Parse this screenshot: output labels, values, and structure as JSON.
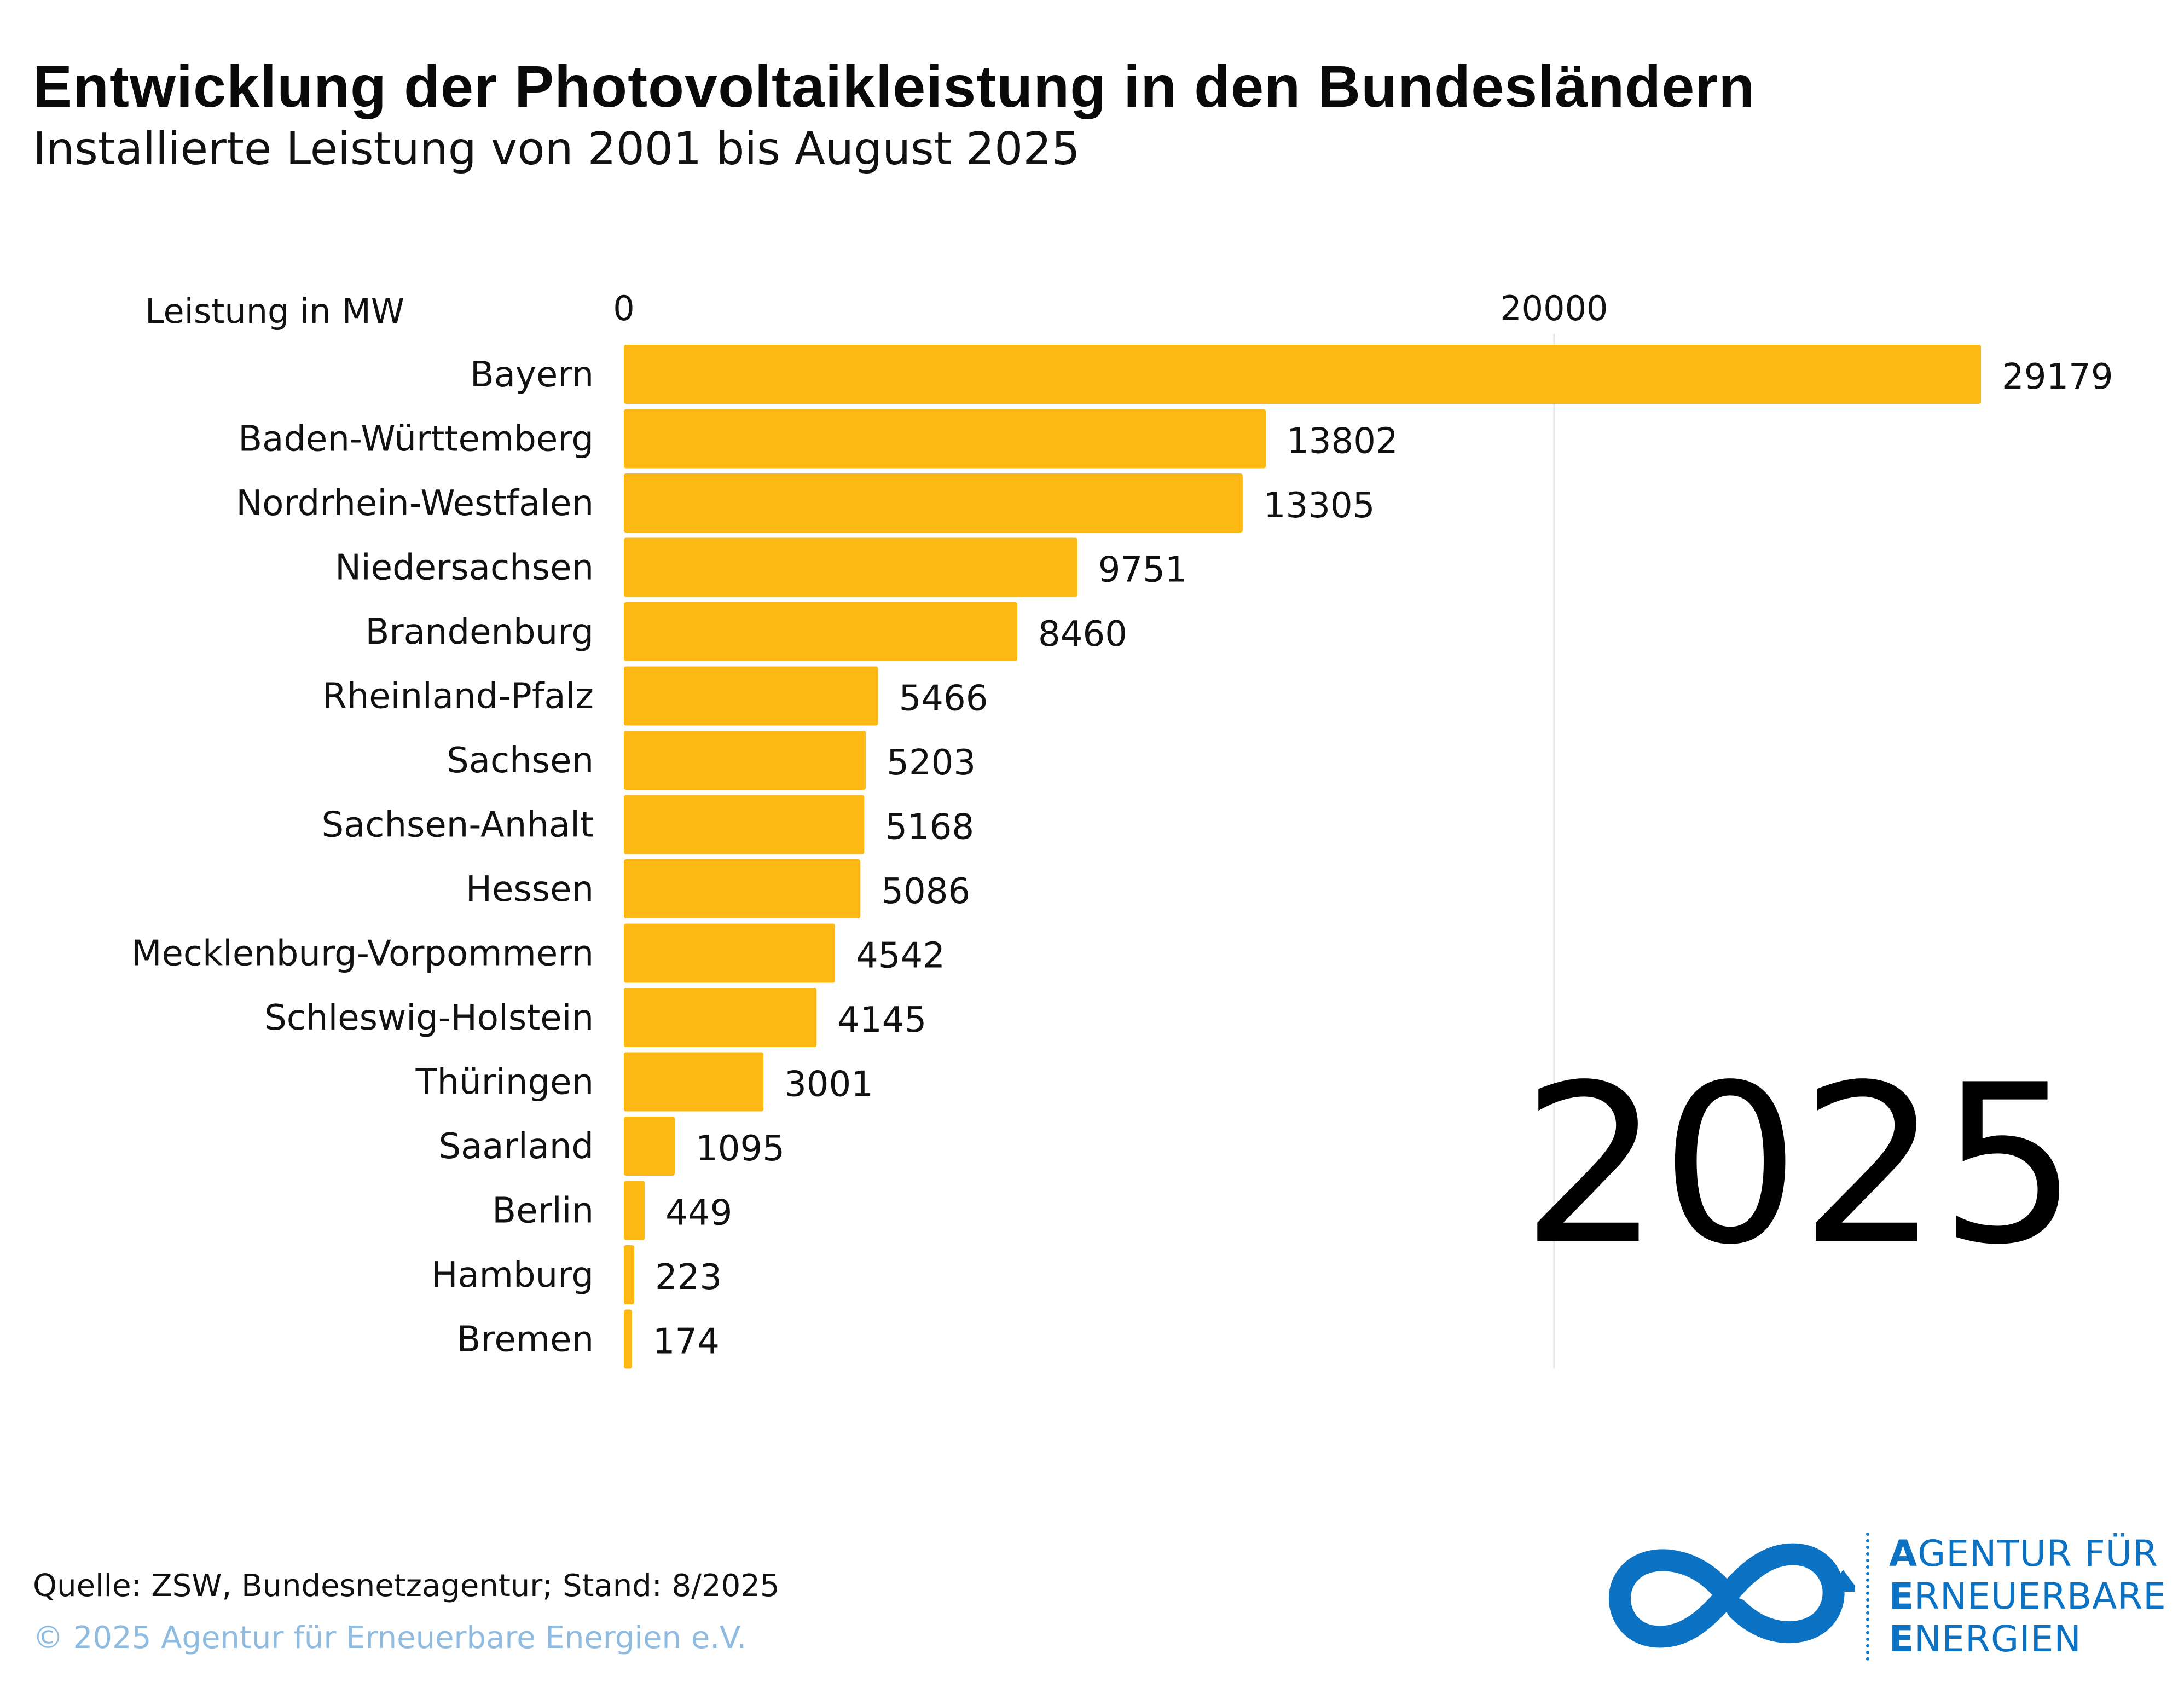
{
  "title": "Entwicklung der Photovoltaikleistung in den Bundesländern",
  "subtitle": "Installierte Leistung von 2001 bis August 2025",
  "year": "2025",
  "source": "Quelle: ZSW, Bundesnetzagentur; Stand: 8/2025",
  "copyright": "© 2025 Agentur für Erneuerbare Energien e.V.",
  "logo": {
    "lines": [
      {
        "first": "A",
        "rest": "GENTUR FÜR"
      },
      {
        "first": "E",
        "rest": "RNEUERBARE"
      },
      {
        "first": "E",
        "rest": "NERGIEN"
      }
    ],
    "icon": "infinity-logo-icon"
  },
  "colors": {
    "bar": "#FDB813",
    "logo_blue": "#0B72C4",
    "copyright": "#8FBBE0",
    "gridline": "#E6E6E6"
  },
  "chart_data": {
    "type": "bar",
    "orientation": "horizontal",
    "xlabel": "Leistung in MW",
    "xlim": [
      0,
      29179
    ],
    "x_ticks": [
      0,
      20000
    ],
    "tick_labels": [
      "0",
      "20000"
    ],
    "gridlines": [
      20000
    ],
    "categories": [
      "Bayern",
      "Baden-Württemberg",
      "Nordrhein-Westfalen",
      "Niedersachsen",
      "Brandenburg",
      "Rheinland-Pfalz",
      "Sachsen",
      "Sachsen-Anhalt",
      "Hessen",
      "Mecklenburg-Vorpommern",
      "Schleswig-Holstein",
      "Thüringen",
      "Saarland",
      "Berlin",
      "Hamburg",
      "Bremen"
    ],
    "values": [
      29179,
      13802,
      13305,
      9751,
      8460,
      5466,
      5203,
      5168,
      5086,
      4542,
      4145,
      3001,
      1095,
      449,
      223,
      174
    ],
    "data_labels": [
      "29179",
      "13802",
      "13305",
      "9751",
      "8460",
      "5466",
      "5203",
      "5168",
      "5086",
      "4542",
      "4145",
      "3001",
      "1095",
      "449",
      "223",
      "174"
    ]
  }
}
